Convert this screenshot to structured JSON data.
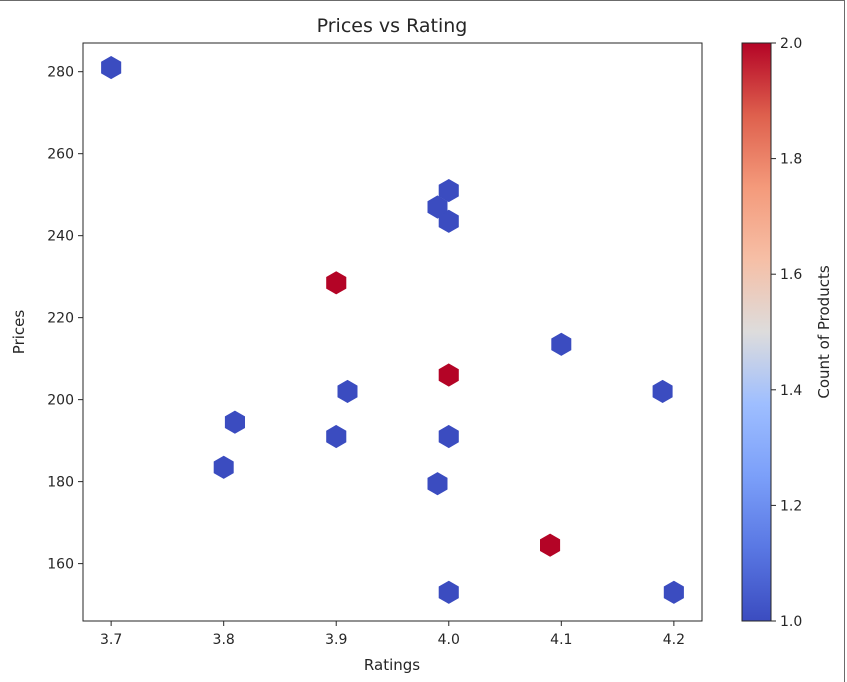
{
  "chart_data": {
    "type": "hexbin",
    "title": "Prices vs Rating",
    "xlabel": "Ratings",
    "ylabel": "Prices",
    "colorbar_label": "Count of Products",
    "colormap": "coolwarm",
    "xlim": [
      3.675,
      4.225
    ],
    "ylim": [
      146,
      287
    ],
    "xticks": [
      "3.7",
      "3.8",
      "3.9",
      "4.0",
      "4.1",
      "4.2"
    ],
    "yticks": [
      "160",
      "180",
      "200",
      "220",
      "240",
      "260",
      "280"
    ],
    "clim": [
      1.0,
      2.0
    ],
    "cticks": [
      "1.0",
      "1.2",
      "1.4",
      "1.6",
      "1.8",
      "2.0"
    ],
    "colors": {
      "low": "#3b4cc0",
      "high": "#b40426"
    },
    "points": [
      {
        "x": 3.7,
        "y": 281,
        "count": 1
      },
      {
        "x": 4.0,
        "y": 251,
        "count": 1
      },
      {
        "x": 3.99,
        "y": 247,
        "count": 1
      },
      {
        "x": 4.0,
        "y": 243.5,
        "count": 1
      },
      {
        "x": 3.9,
        "y": 228.5,
        "count": 2
      },
      {
        "x": 4.1,
        "y": 213.5,
        "count": 1
      },
      {
        "x": 4.0,
        "y": 206,
        "count": 2
      },
      {
        "x": 3.91,
        "y": 202,
        "count": 1
      },
      {
        "x": 4.19,
        "y": 202,
        "count": 1
      },
      {
        "x": 3.81,
        "y": 194.5,
        "count": 1
      },
      {
        "x": 3.9,
        "y": 191,
        "count": 1
      },
      {
        "x": 4.0,
        "y": 191,
        "count": 1
      },
      {
        "x": 3.8,
        "y": 183.5,
        "count": 1
      },
      {
        "x": 3.99,
        "y": 179.5,
        "count": 1
      },
      {
        "x": 4.09,
        "y": 164.5,
        "count": 2
      },
      {
        "x": 4.0,
        "y": 153,
        "count": 1
      },
      {
        "x": 4.2,
        "y": 153,
        "count": 1
      }
    ]
  }
}
